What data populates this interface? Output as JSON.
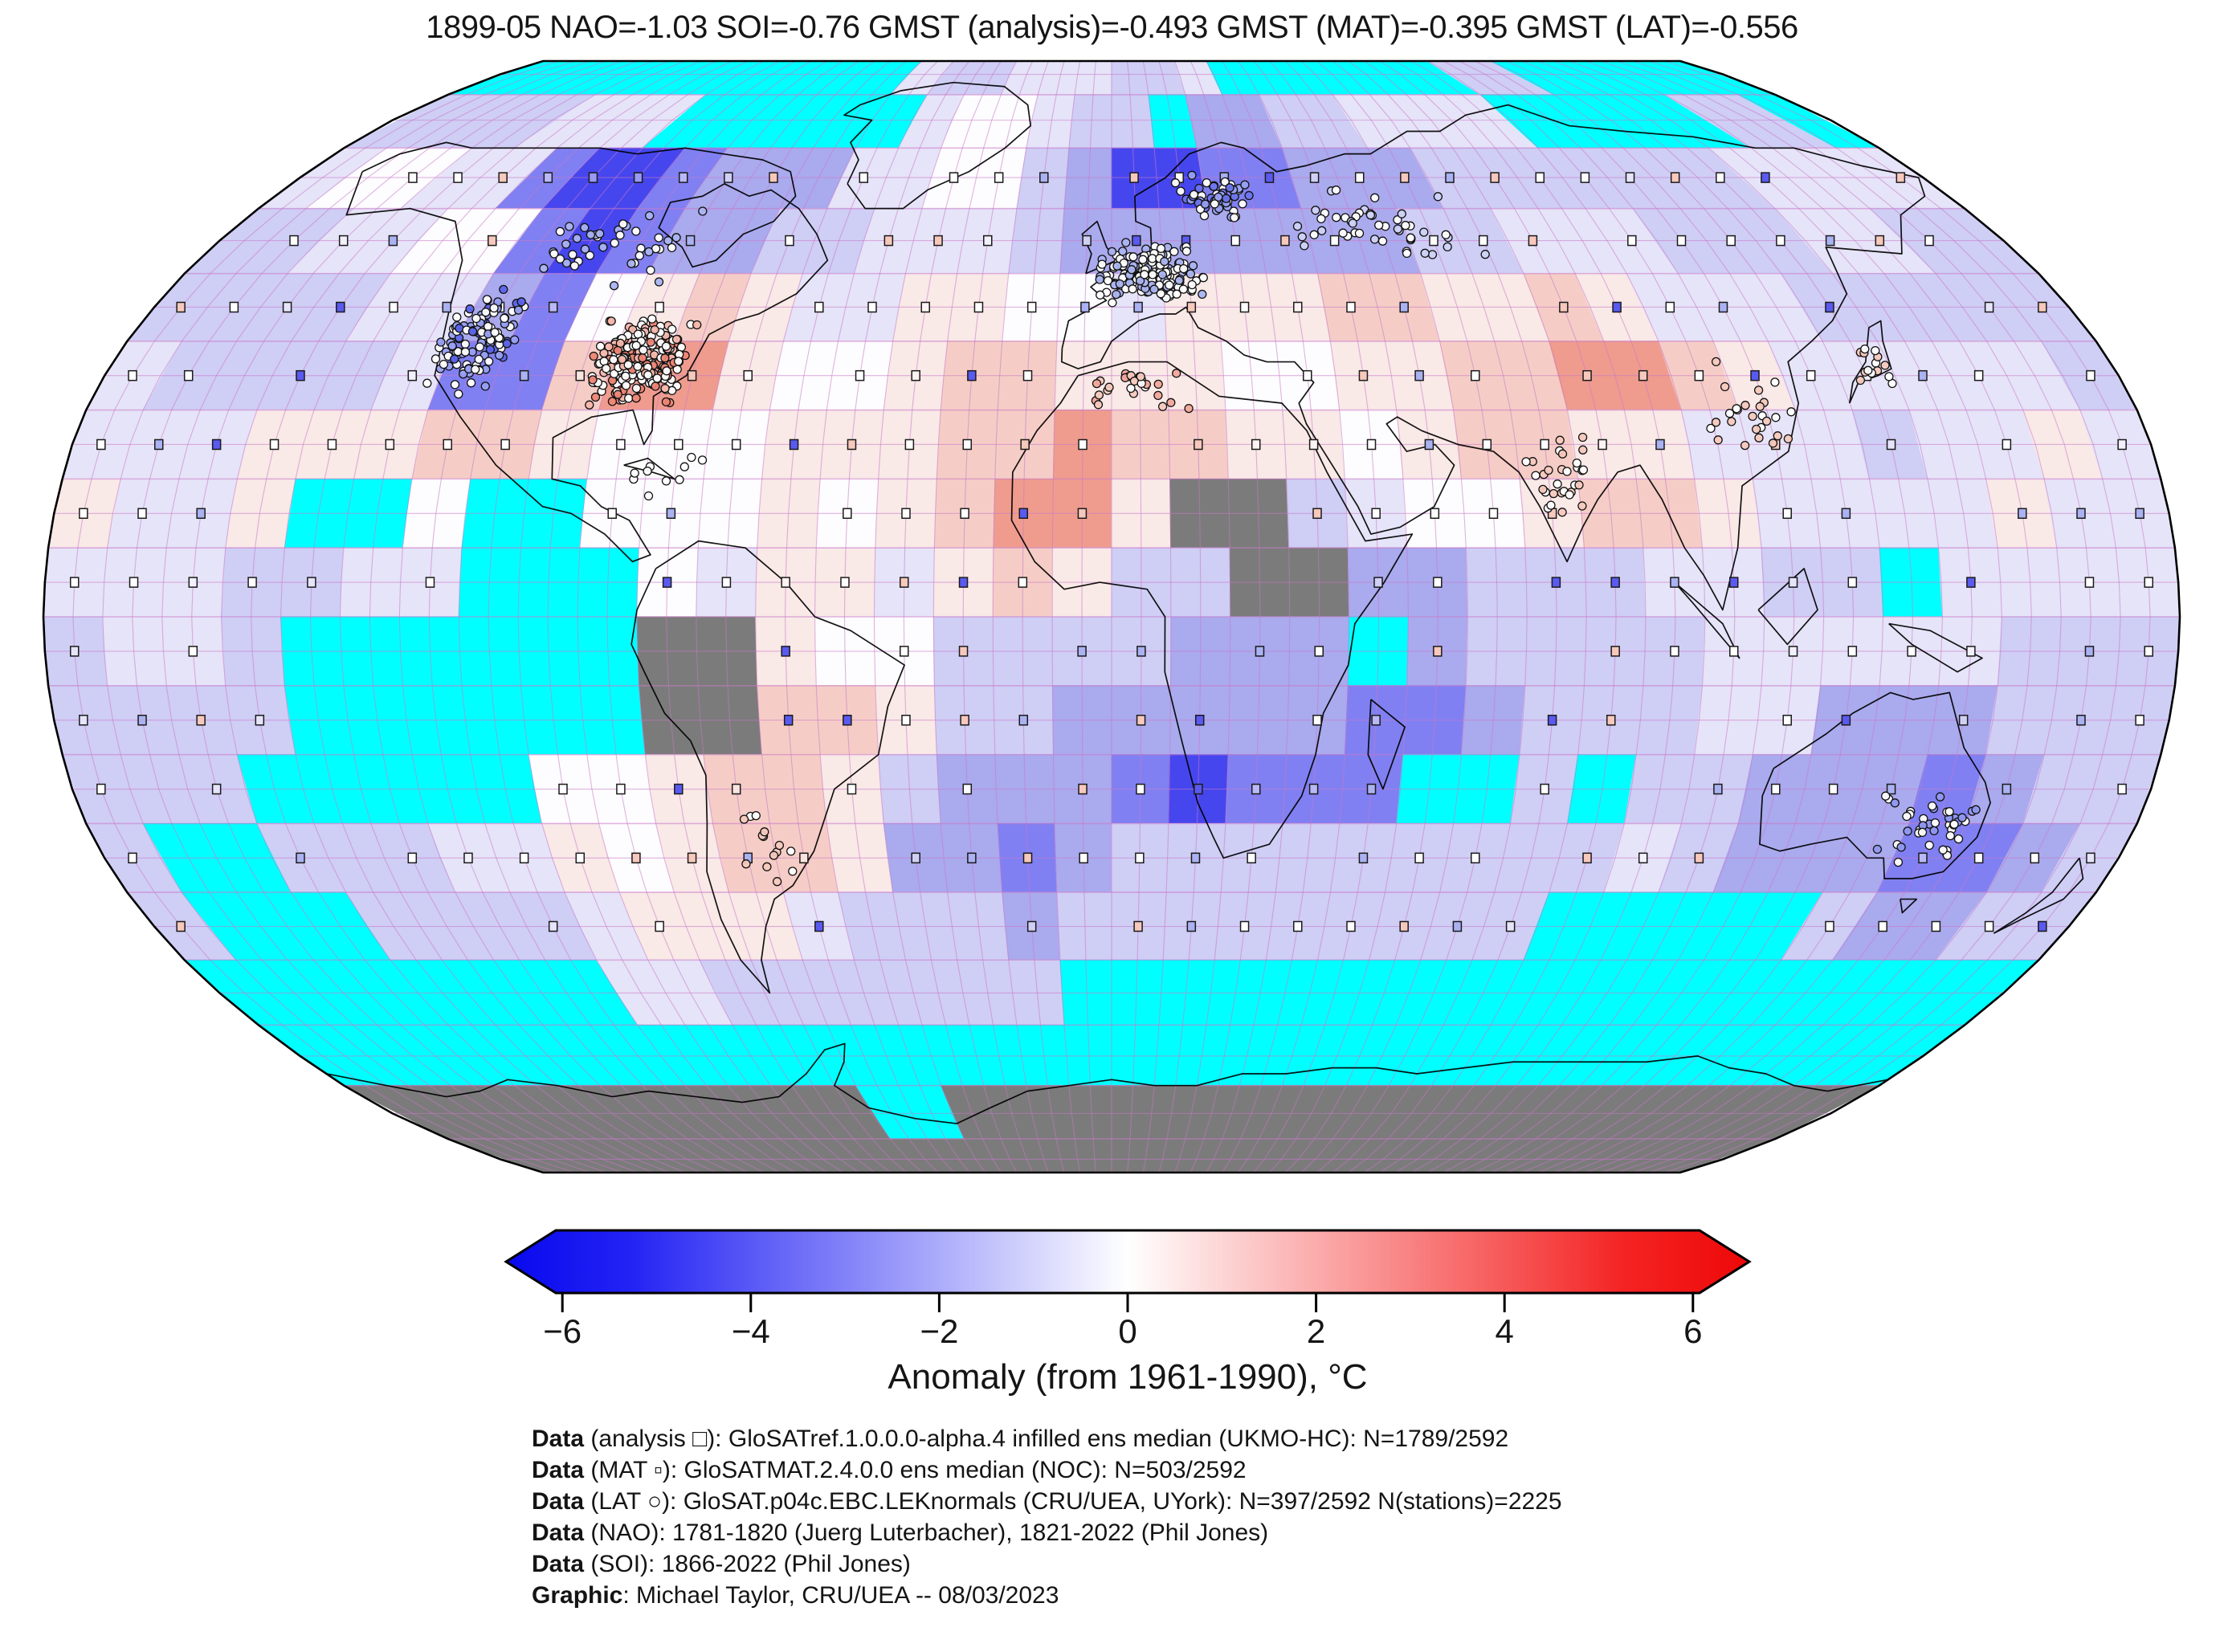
{
  "title": "1899-05 NAO=-1.03 SOI=-0.76 GMST (analysis)=-0.493 GMST (MAT)=-0.395 GMST (LAT)=-0.556",
  "colorbar": {
    "min": -6,
    "max": 6,
    "ticks": [
      -6,
      -4,
      -2,
      0,
      2,
      4,
      6
    ],
    "label": "Anomaly (from 1961-1990), °C",
    "left_color": "#0000ee",
    "mid_color": "#ffffff",
    "right_color": "#ee0000"
  },
  "credits": [
    {
      "bold": "Data",
      "rest": " (analysis □): GloSATref.1.0.0.0-alpha.4 infilled ens median (UKMO-HC): N=1789/2592"
    },
    {
      "bold": "Data",
      "rest": " (MAT ▫): GloSATMAT.2.4.0.0 ens median (NOC): N=503/2592"
    },
    {
      "bold": "Data",
      "rest": " (LAT ○): GloSAT.p04c.EBC.LEKnormals (CRU/UEA, UYork): N=397/2592 N(stations)=2225"
    },
    {
      "bold": "Data",
      "rest": " (NAO): 1781-1820 (Juerg Luterbacher), 1821-2022 (Phil Jones)"
    },
    {
      "bold": "Data",
      "rest": " (SOI): 1866-2022 (Phil Jones)"
    },
    {
      "bold": "Graphic",
      "rest": ": Michael Taylor, CRU/UEA -- 08/03/2023"
    }
  ],
  "chart_data": {
    "type": "heatmap",
    "projection": "robinson",
    "date": "1899-05",
    "indices": {
      "NAO": -1.03,
      "SOI": -0.76,
      "GMST_analysis": -0.493,
      "GMST_MAT": -0.395,
      "GMST_LAT": -0.556
    },
    "baseline": "1961-1990",
    "units": "°C",
    "counts": {
      "analysis": "1789/2592",
      "MAT": "503/2592",
      "LAT": "397/2592",
      "stations": 2225
    },
    "colorbar_range": [
      -6,
      6
    ],
    "grid": {
      "rows": 18,
      "cols": 36,
      "lat_start": 90,
      "lon_start": -180,
      "cell_deg": 10,
      "palette": {
        "C": "#00ffff",
        "G": "#7b7b7b",
        "B": "#4646ee",
        "b": "#8080f2",
        "v": "#aaaaee",
        "l": "#cfcef5",
        "p": "#e6e4f8",
        "w": "#fdfcfe",
        "q": "#f9e9e7",
        "r": "#f5cdc6",
        "R": "#ef9c8f",
        "D": "#e96a5a"
      },
      "palette_meaning": {
        "C": "no-data ocean (cyan)",
        "G": "no-data land (grey)",
        "B": "anomaly about -4",
        "b": "anomaly about -2.5",
        "v": "anomaly about -1.5",
        "l": "anomaly about -0.8",
        "p": "anomaly about -0.3",
        "w": "anomaly about 0",
        "q": "anomaly about +0.3",
        "r": "anomaly about +1",
        "R": "anomaly about +2.5",
        "D": "anomaly about +4"
      },
      "cells": [
        "CCCCCCCCCCCCpllpppllpCCCCCCCllCCCCCC",
        "llllpppCCCCCCpwwpllCvvllppppCCCCCllC",
        "pwwppbBBbvvvppwwlvBBbbvvvlllllllpppp",
        "llppwwbBbvvllppplvvvvvvvllppplllppll",
        "llllppvbwqrqppqqwwpqqqrrqqrqppplllll",
        "pllllpbbrRRqwwqrrqqqwwqqrrRRrqpppppl",
        "pppqqqrrqwwwqqqrrRrrqqwqrrqqppplppqp",
        "qppqCCwCCwwwqwqrRRqGGlpwwqrrqppppqpp",
        "pppllppCCCwpqqpqrqllGGvvlllppllCpppp",
        "lpplCCCCCCGGqwwllllvvvCvllllppppplll",
        "llllCCCCCCGGrrqllvvvvvbbvlllppvvvlll",
        "lllCCCCCwwqrrqlvvvbBbbbCClCllvvvbvll",
        "lCClllppqwqrrqvvbvlllllllllplvvvbbvl",
        "lCCCllllpqqqplllvlllllllllCCCCClvvll",
        "CCCCCCCCpplllllllCCCCCCCCCCCCCCCCCCC",
        "CCCCCCCCCCCCCCCCCCCCCCCCCCCCCCCCCCCC",
        "GGGGGGGGGGGGCCGGGGGGGGGGGGGGGGGGGGGG",
        "GGGGGGGGGGGGGGGGGGGGGGGGGGGGGGGGGGGG"
      ]
    },
    "station_clusters": [
      {
        "name": "us-east",
        "lon": -85,
        "lat": 37,
        "dlon": 10,
        "dlat": 7,
        "n": 260,
        "fills": [
          "#ffffff",
          "#f6b7ab",
          "#ee8575",
          "#ffffff"
        ]
      },
      {
        "name": "us-west",
        "lon": -116,
        "lat": 40,
        "dlon": 7,
        "dlat": 8,
        "n": 120,
        "fills": [
          "#ffffff",
          "#97a0f2",
          "#5b64ea",
          "#ffffff"
        ]
      },
      {
        "name": "canada",
        "lon": -100,
        "lat": 54,
        "dlon": 16,
        "dlat": 6,
        "n": 42,
        "fills": [
          "#ffffff",
          "#aab4f0"
        ]
      },
      {
        "name": "europe",
        "lon": 8,
        "lat": 50,
        "dlon": 11,
        "dlat": 5,
        "n": 170,
        "fills": [
          "#ffffff",
          "#aab4f0",
          "#ffffff"
        ]
      },
      {
        "name": "scandinavia",
        "lon": 22,
        "lat": 62,
        "dlon": 9,
        "dlat": 4,
        "n": 55,
        "fills": [
          "#97a0f2",
          "#6b74ec",
          "#ffffff"
        ]
      },
      {
        "name": "russia-west",
        "lon": 55,
        "lat": 57,
        "dlon": 22,
        "dlat": 7,
        "n": 48,
        "fills": [
          "#ffffff",
          "#cdd2f5"
        ]
      },
      {
        "name": "med-north-africa",
        "lon": 5,
        "lat": 34,
        "dlon": 11,
        "dlat": 4,
        "n": 26,
        "fills": [
          "#ffffff",
          "#f2a79a",
          "#f6c9bd"
        ]
      },
      {
        "name": "india",
        "lon": 78,
        "lat": 20,
        "dlon": 8,
        "dlat": 7,
        "n": 30,
        "fills": [
          "#ffffff",
          "#f6c9bd"
        ]
      },
      {
        "name": "east-asia",
        "lon": 112,
        "lat": 29,
        "dlon": 11,
        "dlat": 9,
        "n": 26,
        "fills": [
          "#ffffff",
          "#f6c9bd"
        ]
      },
      {
        "name": "japan",
        "lon": 137,
        "lat": 37,
        "dlon": 4,
        "dlat": 4,
        "n": 14,
        "fills": [
          "#ffffff",
          "#f6c9bd"
        ]
      },
      {
        "name": "australia",
        "lon": 143,
        "lat": -31,
        "dlon": 9,
        "dlat": 6,
        "n": 42,
        "fills": [
          "#ffffff",
          "#8f98f0"
        ]
      },
      {
        "name": "south-america",
        "lon": -62,
        "lat": -33,
        "dlon": 6,
        "dlat": 9,
        "n": 14,
        "fills": [
          "#ffffff",
          "#f6c9bd"
        ]
      },
      {
        "name": "caribbean",
        "lon": -78,
        "lat": 20,
        "dlon": 8,
        "dlat": 4,
        "n": 10,
        "fills": [
          "#ffffff"
        ]
      }
    ]
  }
}
